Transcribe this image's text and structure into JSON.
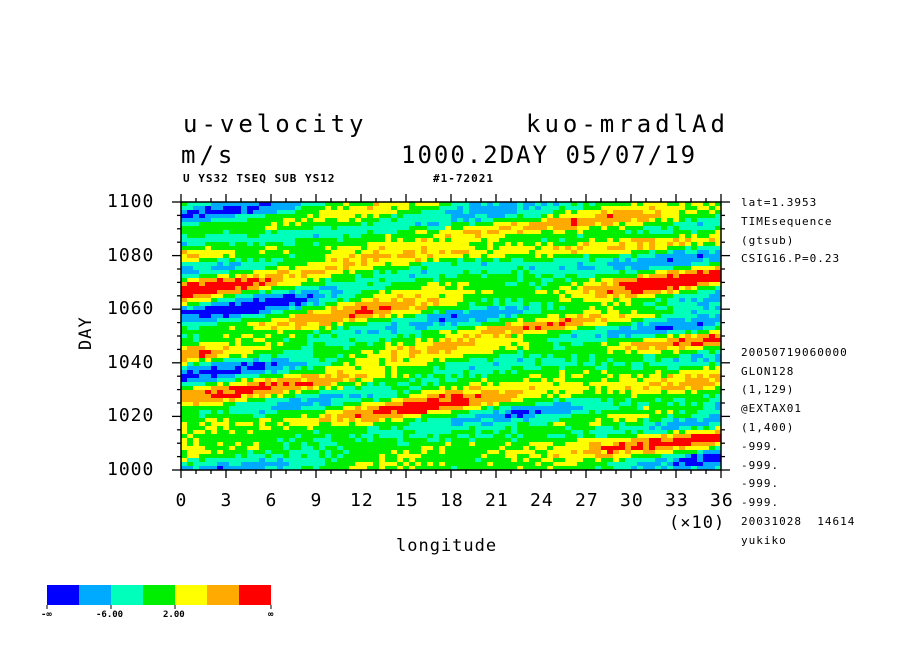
{
  "header": {
    "title_left": "u-velocity",
    "title_right": "kuo-mradlAd",
    "units": "m/s",
    "date_line": "1000.2DAY 05/07/19",
    "sub_left": "U YS32 TSEQ SUB YS12",
    "sub_right": "#1-72021"
  },
  "side_info": [
    "lat=1.3953",
    "TIMEsequence",
    "(gtsub)",
    "CSIG16.P=0.23",
    "20050719060000",
    "GLON128",
    "(1,129)",
    "@EXTAX01",
    "(1,400)",
    "-999.",
    "-999.",
    "-999.",
    "-999.",
    "20031028  14614",
    "yukiko"
  ],
  "x_multiplier": "(×10)",
  "colors": [
    "#0000ff",
    "#00aaff",
    "#00ffbb",
    "#00ee00",
    "#ffff00",
    "#ffaa00",
    "#ff0000"
  ],
  "colorbar_labels": [
    "-∞",
    "-6.00",
    "2.00",
    "∞"
  ],
  "chart_data": {
    "type": "heatmap",
    "xlabel": "longitude",
    "ylabel": "DAY",
    "xlim": [
      0,
      36
    ],
    "ylim": [
      1000,
      1100
    ],
    "x_ticks": [
      0,
      3,
      6,
      9,
      12,
      15,
      18,
      21,
      24,
      27,
      30,
      33,
      36
    ],
    "x_tick_labels": [
      "0",
      "3",
      "6",
      "9",
      "12",
      "15",
      "18",
      "21",
      "24",
      "27",
      "30",
      "33",
      "36"
    ],
    "y_ticks": [
      1000,
      1020,
      1040,
      1060,
      1080,
      1100
    ],
    "y_tick_labels": [
      "1000",
      "1020",
      "1040",
      "1060",
      "1080",
      "1100"
    ],
    "bins": [
      "-∞",
      "-6.00",
      "2.00",
      "∞"
    ],
    "grid": false,
    "legend": "bottom-left colorbar"
  }
}
